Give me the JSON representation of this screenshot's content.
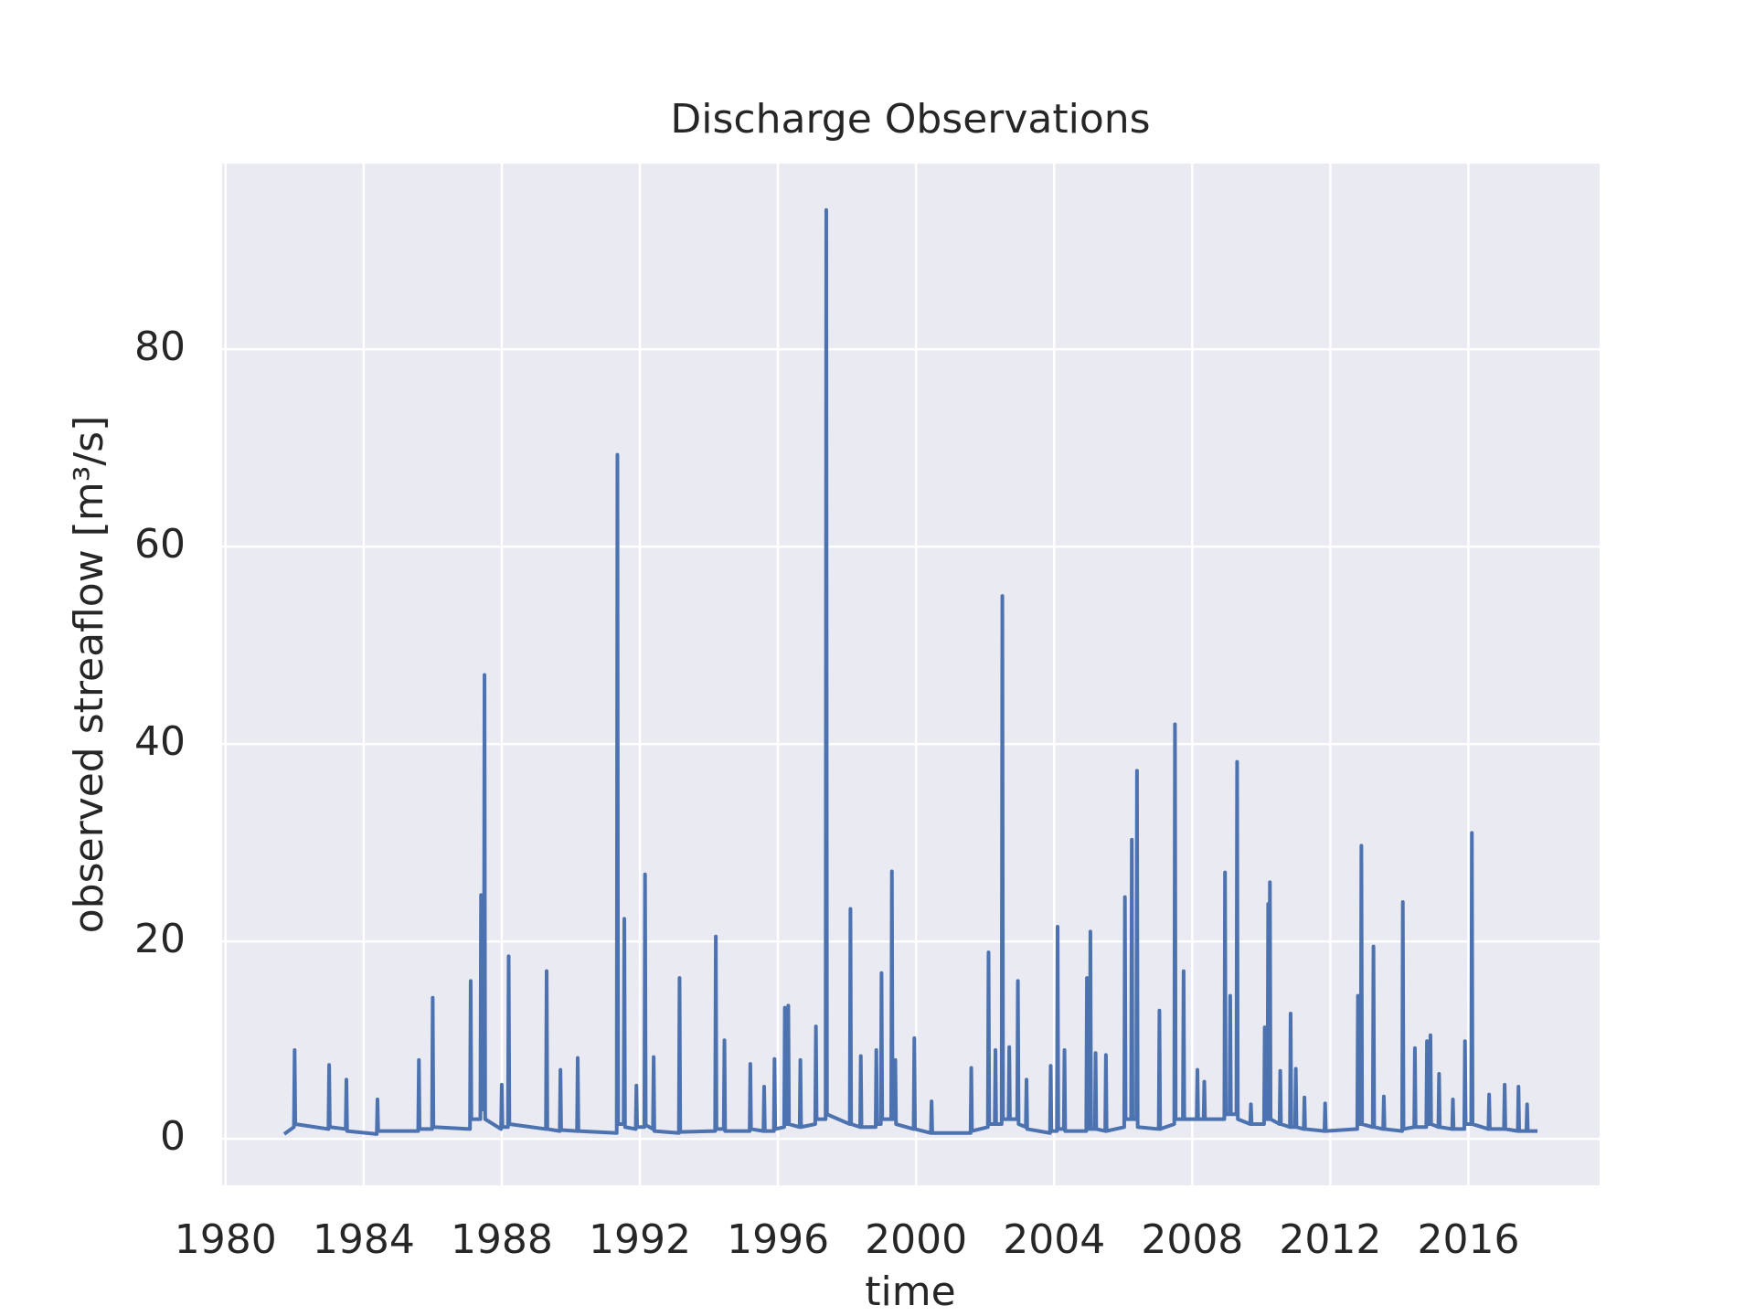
{
  "chart_data": {
    "type": "line",
    "title": "Discharge Observations",
    "xlabel": "time",
    "ylabel": "observed streaflow [m³/s]",
    "color": "#4c72b0",
    "grid": true,
    "background": "#eaeaf2",
    "xlim": [
      1979.9,
      2019.8
    ],
    "xticks": [
      1980,
      1984,
      1988,
      1992,
      1996,
      2000,
      2004,
      2008,
      2012,
      2016
    ],
    "ylim": [
      -4.7,
      98.8
    ],
    "yticks": [
      0,
      20,
      40,
      60,
      80
    ],
    "x": [
      1981.7,
      1981.98,
      1982.0,
      1982.02,
      1982.98,
      1983.0,
      1983.02,
      1983.48,
      1983.5,
      1983.52,
      1984.38,
      1984.4,
      1984.42,
      1985.58,
      1985.6,
      1985.62,
      1985.98,
      1986.0,
      1986.02,
      1987.08,
      1987.1,
      1987.12,
      1987.38,
      1987.4,
      1987.42,
      1987.48,
      1987.5,
      1987.52,
      1987.98,
      1988.0,
      1988.02,
      1988.18,
      1988.2,
      1988.22,
      1989.28,
      1989.3,
      1989.32,
      1989.68,
      1989.7,
      1989.72,
      1990.18,
      1990.2,
      1990.22,
      1991.33,
      1991.35,
      1991.37,
      1991.53,
      1991.55,
      1991.57,
      1991.88,
      1991.9,
      1991.92,
      1992.13,
      1992.15,
      1992.17,
      1992.38,
      1992.4,
      1992.42,
      1993.13,
      1993.15,
      1993.17,
      1994.18,
      1994.2,
      1994.22,
      1994.43,
      1994.45,
      1994.47,
      1995.18,
      1995.2,
      1995.22,
      1995.58,
      1995.6,
      1995.62,
      1995.88,
      1995.9,
      1995.92,
      1996.18,
      1996.2,
      1996.22,
      1996.28,
      1996.3,
      1996.32,
      1996.63,
      1996.65,
      1996.67,
      1997.08,
      1997.1,
      1997.12,
      1997.38,
      1997.4,
      1997.42,
      1998.08,
      1998.1,
      1998.12,
      1998.38,
      1998.4,
      1998.42,
      1998.83,
      1998.85,
      1998.87,
      1998.98,
      1999.0,
      1999.02,
      1999.28,
      1999.3,
      1999.32,
      1999.38,
      1999.4,
      1999.42,
      1999.93,
      1999.95,
      1999.97,
      2000.43,
      2000.45,
      2000.47,
      2001.58,
      2001.6,
      2001.62,
      2002.08,
      2002.1,
      2002.12,
      2002.28,
      2002.3,
      2002.32,
      2002.48,
      2002.5,
      2002.52,
      2002.68,
      2002.7,
      2002.72,
      2002.93,
      2002.95,
      2002.97,
      2003.18,
      2003.2,
      2003.22,
      2003.88,
      2003.9,
      2003.92,
      2004.08,
      2004.1,
      2004.12,
      2004.28,
      2004.3,
      2004.32,
      2004.93,
      2004.95,
      2004.97,
      2005.03,
      2005.05,
      2005.07,
      2005.18,
      2005.2,
      2005.22,
      2005.48,
      2005.5,
      2005.52,
      2006.03,
      2006.05,
      2006.07,
      2006.23,
      2006.25,
      2006.27,
      2006.38,
      2006.4,
      2006.42,
      2007.03,
      2007.05,
      2007.07,
      2007.48,
      2007.5,
      2007.52,
      2007.73,
      2007.75,
      2007.77,
      2008.13,
      2008.15,
      2008.17,
      2008.33,
      2008.35,
      2008.37,
      2008.93,
      2008.95,
      2008.97,
      2009.08,
      2009.1,
      2009.12,
      2009.28,
      2009.3,
      2009.32,
      2009.68,
      2009.7,
      2009.72,
      2010.08,
      2010.1,
      2010.12,
      2010.18,
      2010.2,
      2010.22,
      2010.23,
      2010.25,
      2010.27,
      2010.53,
      2010.55,
      2010.57,
      2010.83,
      2010.85,
      2010.87,
      2010.98,
      2011.0,
      2011.02,
      2011.23,
      2011.25,
      2011.27,
      2011.83,
      2011.85,
      2011.87,
      2012.78,
      2012.8,
      2012.82,
      2012.88,
      2012.9,
      2012.92,
      2013.23,
      2013.25,
      2013.27,
      2013.53,
      2013.55,
      2013.57,
      2014.08,
      2014.1,
      2014.12,
      2014.43,
      2014.45,
      2014.47,
      2014.78,
      2014.8,
      2014.82,
      2014.88,
      2014.9,
      2014.92,
      2015.13,
      2015.15,
      2015.17,
      2015.53,
      2015.55,
      2015.57,
      2015.88,
      2015.9,
      2015.92,
      2016.08,
      2016.1,
      2016.12,
      2016.58,
      2016.6,
      2016.62,
      2017.03,
      2017.05,
      2017.07,
      2017.43,
      2017.45,
      2017.47,
      2017.68,
      2017.7,
      2017.72,
      2018.0
    ],
    "values": [
      0.5,
      1.2,
      9,
      1.5,
      1,
      7.5,
      1.2,
      1,
      6,
      0.8,
      0.5,
      4,
      0.8,
      0.8,
      8,
      1,
      1,
      14.3,
      1.2,
      1,
      16,
      2,
      2,
      24.7,
      3,
      3,
      47,
      2,
      1,
      5.5,
      1.2,
      1.2,
      18.5,
      1.5,
      1,
      17,
      1,
      0.8,
      7,
      0.9,
      0.8,
      8.2,
      0.8,
      0.6,
      69.3,
      1.5,
      1.5,
      22.3,
      1.2,
      1,
      5.4,
      1.2,
      1.2,
      26.8,
      1.4,
      1,
      8.3,
      0.8,
      0.6,
      16.3,
      0.7,
      0.8,
      20.5,
      1,
      1,
      10,
      0.8,
      0.8,
      7.6,
      1,
      0.8,
      5.3,
      0.8,
      0.8,
      8.1,
      1,
      1.2,
      13.3,
      1.5,
      1.5,
      13.5,
      1.5,
      1.2,
      8,
      1.2,
      1.5,
      11.4,
      2,
      2,
      94.1,
      2.5,
      1.5,
      23.3,
      1.5,
      1.2,
      8.4,
      1.2,
      1.2,
      9,
      1.5,
      1.5,
      16.8,
      2,
      2,
      27.1,
      2,
      2,
      8,
      1.5,
      1,
      10.2,
      1,
      0.6,
      3.8,
      0.6,
      0.6,
      7.2,
      0.8,
      1.2,
      18.9,
      1.5,
      1.5,
      9,
      1.5,
      1.5,
      55,
      2,
      2,
      9.3,
      2,
      2,
      16,
      1.5,
      1.2,
      6,
      1,
      0.6,
      7.4,
      0.8,
      0.8,
      21.5,
      1,
      1,
      9,
      0.8,
      0.8,
      16.3,
      1,
      1,
      21,
      1,
      1,
      8.7,
      1,
      0.8,
      8.5,
      0.8,
      1.2,
      24.5,
      2,
      2,
      30.3,
      2,
      2,
      37.3,
      1.2,
      1,
      13,
      1,
      1.5,
      42,
      2,
      2,
      17,
      2,
      2,
      7,
      2,
      2,
      5.8,
      2,
      2,
      27,
      2.5,
      2.5,
      14.5,
      2.5,
      2.5,
      38.2,
      2,
      1.5,
      3.5,
      1.5,
      1.5,
      11.3,
      2,
      2,
      23.8,
      2,
      2,
      26,
      2,
      1.5,
      6.9,
      1.5,
      1.2,
      12.7,
      1.2,
      1.2,
      7.1,
      1.2,
      1,
      4.2,
      1,
      0.8,
      3.6,
      0.8,
      1,
      14.5,
      1.5,
      1.5,
      29.7,
      1.5,
      1.2,
      19.5,
      1.2,
      1,
      4.3,
      1,
      0.8,
      24,
      1,
      1.2,
      9.2,
      1.2,
      1.2,
      9.9,
      1.5,
      1.5,
      10.5,
      1.5,
      1.2,
      6.6,
      1.2,
      1,
      4,
      1,
      1,
      9.9,
      1.5,
      1.5,
      31,
      1.5,
      1,
      4.5,
      1,
      1,
      5.5,
      1,
      0.8,
      5.3,
      0.8,
      0.8,
      3.5,
      0.8,
      0.8
    ]
  }
}
